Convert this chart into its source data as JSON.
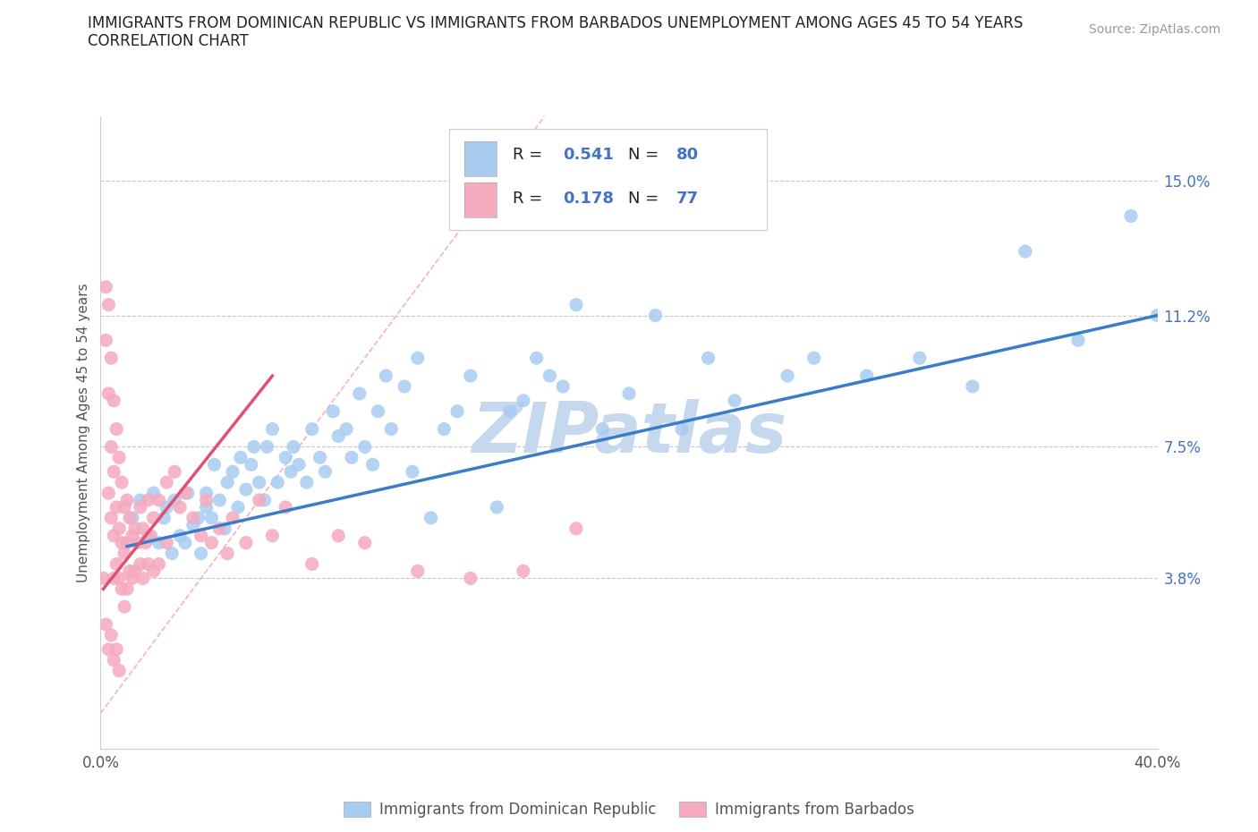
{
  "title_line1": "IMMIGRANTS FROM DOMINICAN REPUBLIC VS IMMIGRANTS FROM BARBADOS UNEMPLOYMENT AMONG AGES 45 TO 54 YEARS",
  "title_line2": "CORRELATION CHART",
  "source_text": "Source: ZipAtlas.com",
  "legend_label_blue": "Immigrants from Dominican Republic",
  "legend_label_pink": "Immigrants from Barbados",
  "ylabel": "Unemployment Among Ages 45 to 54 years",
  "xlim": [
    0.0,
    0.4
  ],
  "ylim": [
    -0.01,
    0.168
  ],
  "ytick_labels_right": [
    "3.8%",
    "7.5%",
    "11.2%",
    "15.0%"
  ],
  "ytick_vals_right": [
    0.038,
    0.075,
    0.112,
    0.15
  ],
  "color_blue": "#A8CCF0",
  "color_pink": "#F5AABE",
  "color_trend_blue": "#3A7CC8",
  "color_trend_pink": "#E05070",
  "color_diagonal": "#F0A0B0",
  "color_grid": "#C8C8C8",
  "color_axis_blue": "#4472C4",
  "background_color": "#FFFFFF",
  "watermark_text": "ZIPatlas",
  "watermark_color": "#C5D8EE",
  "blue_x": [
    0.012,
    0.015,
    0.018,
    0.02,
    0.022,
    0.024,
    0.025,
    0.027,
    0.028,
    0.03,
    0.032,
    0.033,
    0.035,
    0.037,
    0.038,
    0.04,
    0.04,
    0.042,
    0.043,
    0.045,
    0.047,
    0.048,
    0.05,
    0.052,
    0.053,
    0.055,
    0.057,
    0.058,
    0.06,
    0.062,
    0.063,
    0.065,
    0.067,
    0.07,
    0.072,
    0.073,
    0.075,
    0.078,
    0.08,
    0.083,
    0.085,
    0.088,
    0.09,
    0.093,
    0.095,
    0.098,
    0.1,
    0.103,
    0.105,
    0.108,
    0.11,
    0.115,
    0.118,
    0.12,
    0.125,
    0.13,
    0.135,
    0.14,
    0.15,
    0.155,
    0.16,
    0.165,
    0.17,
    0.175,
    0.18,
    0.19,
    0.2,
    0.21,
    0.22,
    0.23,
    0.24,
    0.26,
    0.27,
    0.29,
    0.31,
    0.33,
    0.35,
    0.37,
    0.39,
    0.4
  ],
  "blue_y": [
    0.055,
    0.06,
    0.05,
    0.062,
    0.048,
    0.055,
    0.058,
    0.045,
    0.06,
    0.05,
    0.048,
    0.062,
    0.053,
    0.055,
    0.045,
    0.058,
    0.062,
    0.055,
    0.07,
    0.06,
    0.052,
    0.065,
    0.068,
    0.058,
    0.072,
    0.063,
    0.07,
    0.075,
    0.065,
    0.06,
    0.075,
    0.08,
    0.065,
    0.072,
    0.068,
    0.075,
    0.07,
    0.065,
    0.08,
    0.072,
    0.068,
    0.085,
    0.078,
    0.08,
    0.072,
    0.09,
    0.075,
    0.07,
    0.085,
    0.095,
    0.08,
    0.092,
    0.068,
    0.1,
    0.055,
    0.08,
    0.085,
    0.095,
    0.058,
    0.085,
    0.088,
    0.1,
    0.095,
    0.092,
    0.115,
    0.08,
    0.09,
    0.112,
    0.08,
    0.1,
    0.088,
    0.095,
    0.1,
    0.095,
    0.1,
    0.092,
    0.13,
    0.105,
    0.14,
    0.112
  ],
  "pink_x": [
    0.001,
    0.002,
    0.002,
    0.003,
    0.003,
    0.003,
    0.004,
    0.004,
    0.004,
    0.005,
    0.005,
    0.005,
    0.005,
    0.006,
    0.006,
    0.006,
    0.007,
    0.007,
    0.007,
    0.008,
    0.008,
    0.008,
    0.009,
    0.009,
    0.009,
    0.01,
    0.01,
    0.01,
    0.011,
    0.011,
    0.012,
    0.012,
    0.013,
    0.013,
    0.014,
    0.015,
    0.015,
    0.016,
    0.016,
    0.017,
    0.018,
    0.018,
    0.019,
    0.02,
    0.02,
    0.022,
    0.022,
    0.025,
    0.025,
    0.028,
    0.03,
    0.032,
    0.035,
    0.038,
    0.04,
    0.042,
    0.045,
    0.048,
    0.05,
    0.055,
    0.06,
    0.065,
    0.07,
    0.08,
    0.09,
    0.1,
    0.12,
    0.14,
    0.16,
    0.18,
    0.002,
    0.003,
    0.004,
    0.005,
    0.006,
    0.007
  ],
  "pink_y": [
    0.038,
    0.12,
    0.105,
    0.115,
    0.09,
    0.062,
    0.1,
    0.075,
    0.055,
    0.088,
    0.068,
    0.05,
    0.038,
    0.08,
    0.058,
    0.042,
    0.072,
    0.052,
    0.038,
    0.065,
    0.048,
    0.035,
    0.058,
    0.045,
    0.03,
    0.06,
    0.048,
    0.035,
    0.055,
    0.04,
    0.05,
    0.038,
    0.052,
    0.04,
    0.048,
    0.058,
    0.042,
    0.052,
    0.038,
    0.048,
    0.06,
    0.042,
    0.05,
    0.055,
    0.04,
    0.06,
    0.042,
    0.065,
    0.048,
    0.068,
    0.058,
    0.062,
    0.055,
    0.05,
    0.06,
    0.048,
    0.052,
    0.045,
    0.055,
    0.048,
    0.06,
    0.05,
    0.058,
    0.042,
    0.05,
    0.048,
    0.04,
    0.038,
    0.04,
    0.052,
    0.025,
    0.018,
    0.022,
    0.015,
    0.018,
    0.012
  ],
  "pink_trend_x_start": 0.001,
  "pink_trend_x_end": 0.065,
  "blue_trend_x_start": 0.01,
  "blue_trend_x_end": 0.4,
  "blue_trend_y_start": 0.047,
  "blue_trend_y_end": 0.112,
  "pink_trend_y_start": 0.035,
  "pink_trend_y_end": 0.095
}
